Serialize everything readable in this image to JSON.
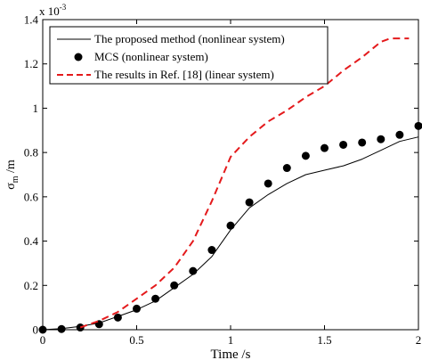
{
  "chart_data": {
    "type": "line",
    "xlabel": "Time /s",
    "ylabel_main": "σ",
    "ylabel_sub": "m",
    "ylabel_rest": " /m",
    "y_exponent_prefix": "x 10",
    "y_exponent_power": "-3",
    "xlim": [
      0,
      2
    ],
    "ylim": [
      0,
      1.4
    ],
    "xticks": [
      0,
      0.5,
      1,
      1.5,
      2
    ],
    "xtick_labels": [
      "0",
      "0.5",
      "1",
      "1.5",
      "2"
    ],
    "yticks": [
      0,
      0.2,
      0.4,
      0.6,
      0.8,
      1,
      1.2,
      1.4
    ],
    "ytick_labels": [
      "0",
      "0.2",
      "0.4",
      "0.6",
      "0.8",
      "1",
      "1.2",
      "1.4"
    ],
    "grid": false,
    "legend_position": "top-left",
    "series": [
      {
        "name": "The proposed method (nonlinear system)",
        "style": "solid",
        "color": "#000000",
        "x": [
          0,
          0.1,
          0.2,
          0.3,
          0.4,
          0.5,
          0.6,
          0.7,
          0.8,
          0.9,
          0.95,
          1.0,
          1.05,
          1.1,
          1.2,
          1.3,
          1.4,
          1.5,
          1.6,
          1.7,
          1.8,
          1.9,
          2.0
        ],
        "y": [
          0,
          0.005,
          0.015,
          0.03,
          0.06,
          0.09,
          0.13,
          0.19,
          0.25,
          0.33,
          0.39,
          0.45,
          0.5,
          0.55,
          0.61,
          0.66,
          0.7,
          0.72,
          0.74,
          0.77,
          0.81,
          0.85,
          0.87
        ]
      },
      {
        "name": "MCS (nonlinear system)",
        "style": "markers",
        "color": "#000000",
        "x": [
          0,
          0.1,
          0.2,
          0.3,
          0.4,
          0.5,
          0.6,
          0.7,
          0.8,
          0.9,
          1.0,
          1.1,
          1.2,
          1.3,
          1.4,
          1.5,
          1.6,
          1.7,
          1.8,
          1.9,
          2.0
        ],
        "y": [
          0,
          0.003,
          0.01,
          0.025,
          0.055,
          0.095,
          0.14,
          0.2,
          0.265,
          0.36,
          0.47,
          0.575,
          0.66,
          0.73,
          0.785,
          0.82,
          0.835,
          0.845,
          0.86,
          0.88,
          0.92
        ]
      },
      {
        "name": "The results in Ref. [18] (linear system)",
        "style": "dashed",
        "color": "#e41a1c",
        "x": [
          0.2,
          0.3,
          0.4,
          0.5,
          0.6,
          0.7,
          0.8,
          0.9,
          1.0,
          1.1,
          1.2,
          1.3,
          1.4,
          1.5,
          1.6,
          1.7,
          1.8,
          1.85,
          1.9,
          1.95
        ],
        "y": [
          0.01,
          0.04,
          0.08,
          0.14,
          0.2,
          0.28,
          0.4,
          0.58,
          0.78,
          0.87,
          0.94,
          0.99,
          1.05,
          1.1,
          1.17,
          1.23,
          1.3,
          1.315,
          1.315,
          1.315
        ]
      }
    ]
  }
}
